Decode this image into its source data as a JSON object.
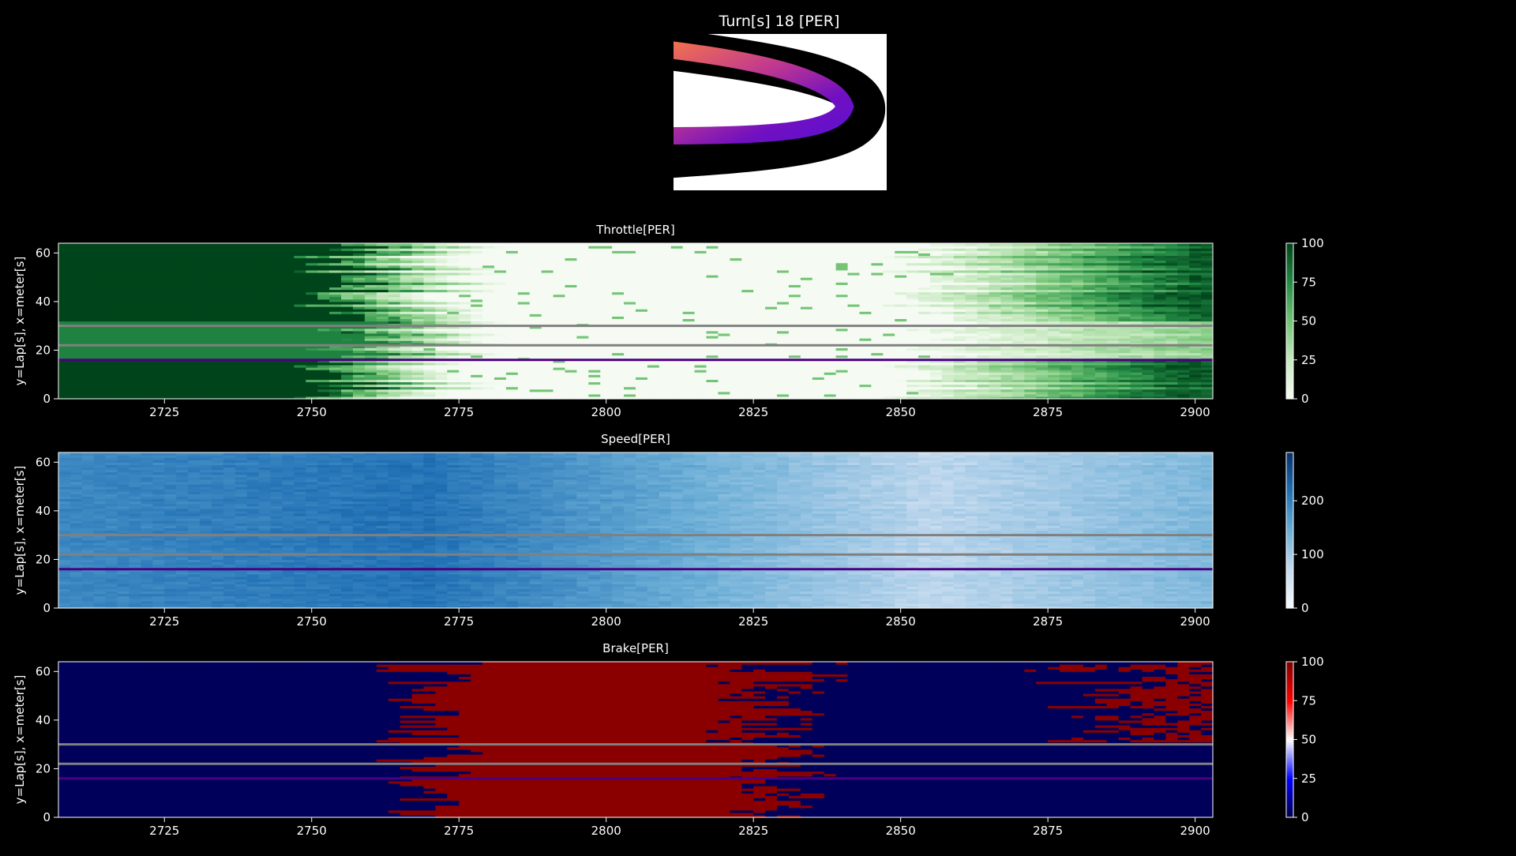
{
  "figure": {
    "title": "Turn[s] 18 [PER]",
    "background": "#000000",
    "reference_line_colors": [
      "#808080",
      "#808080",
      "#4b0082"
    ]
  },
  "track_map": {
    "gradient": [
      "#f07050",
      "#c03890",
      "#7010c0",
      "#6010d0"
    ],
    "track_color": "#000000",
    "bg": "#ffffff"
  },
  "chart_data": [
    {
      "type": "heatmap",
      "title": "Throttle[PER]",
      "ylabel": "y=Lap[s], x=meter[s]",
      "colormap": "Greens",
      "xlim": [
        2707,
        2903
      ],
      "ylim": [
        0,
        64
      ],
      "xticks": [
        2725,
        2750,
        2775,
        2800,
        2825,
        2850,
        2875,
        2900
      ],
      "yticks": [
        0,
        20,
        40,
        60
      ],
      "colorbar": {
        "min": 0,
        "max": 100,
        "ticks": [
          0,
          25,
          50,
          75,
          100
        ]
      },
      "reference_laps": [
        30,
        22,
        16
      ],
      "profile": {
        "full_until": 2755,
        "fade_to_zero": 2775,
        "zero_until": 2855,
        "ramp_to_full": 2900,
        "low_band": [
          16,
          31
        ]
      }
    },
    {
      "type": "heatmap",
      "title": "Speed[PER]",
      "ylabel": "y=Lap[s], x=meter[s]",
      "colormap": "Blues",
      "xlim": [
        2707,
        2903
      ],
      "ylim": [
        0,
        64
      ],
      "xticks": [
        2725,
        2750,
        2775,
        2800,
        2825,
        2850,
        2875,
        2900
      ],
      "yticks": [
        0,
        20,
        40,
        60
      ],
      "colorbar": {
        "min": 0,
        "max": 290,
        "ticks": [
          0,
          100,
          200
        ]
      },
      "reference_laps": [
        30,
        22,
        16
      ],
      "profile": {
        "peak_speed": 215,
        "peak_at": 2770,
        "min_speed": 80,
        "min_at": 2855,
        "end_speed": 130
      }
    },
    {
      "type": "heatmap",
      "title": "Brake[PER]",
      "ylabel": "y=Lap[s], x=meter[s]",
      "colormap": "seismic",
      "xlim": [
        2707,
        2903
      ],
      "ylim": [
        0,
        64
      ],
      "xticks": [
        2725,
        2750,
        2775,
        2800,
        2825,
        2850,
        2875,
        2900
      ],
      "yticks": [
        0,
        20,
        40,
        60
      ],
      "colorbar": {
        "min": 0,
        "max": 100,
        "ticks": [
          0,
          25,
          50,
          75,
          100
        ]
      },
      "reference_laps": [
        30,
        22,
        16
      ],
      "profile": {
        "on_from": 2770,
        "on_to": 2830,
        "late_brake_from": 2880
      }
    }
  ]
}
